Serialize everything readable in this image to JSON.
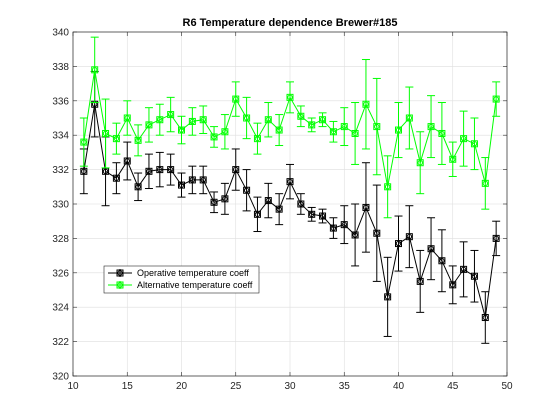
{
  "chart_data": {
    "type": "line",
    "title": "R6 Temperature dependence Brewer#185",
    "xlabel": "",
    "ylabel": "",
    "xlim": [
      10,
      50
    ],
    "ylim": [
      320,
      340
    ],
    "xticks": [
      10,
      15,
      20,
      25,
      30,
      35,
      40,
      45,
      50
    ],
    "yticks": [
      320,
      322,
      324,
      326,
      328,
      330,
      332,
      334,
      336,
      338,
      340
    ],
    "grid": true,
    "legend_placement": "lower-left",
    "series": [
      {
        "name": "Operative temperature coeff",
        "color": "#000000",
        "marker": "circle-square",
        "error_bars": true,
        "x": [
          11,
          12,
          13,
          14,
          15,
          16,
          17,
          18,
          19,
          20,
          21,
          22,
          23,
          24,
          25,
          26,
          27,
          28,
          29,
          30,
          31,
          32,
          33,
          34,
          35,
          36,
          37,
          38,
          39,
          40,
          41,
          42,
          43,
          44,
          45,
          46,
          47,
          48,
          49
        ],
        "y": [
          331.9,
          335.8,
          331.9,
          331.5,
          332.5,
          331.0,
          331.9,
          332.0,
          332.0,
          331.1,
          331.4,
          331.4,
          330.1,
          330.3,
          332.0,
          330.8,
          329.4,
          330.2,
          329.7,
          331.3,
          330.0,
          329.4,
          329.3,
          328.6,
          328.8,
          328.2,
          329.8,
          328.3,
          324.6,
          327.7,
          328.1,
          325.5,
          327.4,
          326.7,
          325.3,
          326.2,
          325.8,
          323.4,
          328.0
        ],
        "err": [
          1.3,
          1.9,
          2.0,
          0.9,
          1.1,
          0.8,
          1.0,
          1.0,
          0.9,
          0.7,
          0.8,
          0.8,
          0.6,
          0.9,
          1.2,
          1.2,
          1.0,
          1.0,
          0.9,
          1.0,
          0.6,
          0.4,
          0.4,
          0.6,
          1.1,
          1.8,
          2.6,
          2.8,
          2.3,
          1.6,
          1.8,
          1.8,
          1.8,
          1.8,
          1.1,
          1.6,
          1.5,
          1.5,
          1.0
        ]
      },
      {
        "name": "Alternative temperature coeff",
        "color": "#00ff00",
        "marker": "circle-square",
        "error_bars": true,
        "x": [
          11,
          12,
          13,
          14,
          15,
          16,
          17,
          18,
          19,
          20,
          21,
          22,
          23,
          24,
          25,
          26,
          27,
          28,
          29,
          30,
          31,
          32,
          33,
          34,
          35,
          36,
          37,
          38,
          39,
          40,
          41,
          42,
          43,
          44,
          45,
          46,
          47,
          48,
          49
        ],
        "y": [
          333.6,
          337.8,
          334.1,
          333.8,
          335.0,
          333.7,
          334.6,
          334.9,
          335.2,
          334.3,
          334.8,
          334.9,
          333.9,
          334.2,
          336.1,
          335.0,
          333.8,
          334.9,
          334.3,
          336.2,
          335.1,
          334.6,
          334.9,
          334.2,
          334.5,
          334.1,
          335.8,
          334.5,
          331.0,
          334.3,
          335.0,
          332.4,
          334.5,
          334.1,
          332.6,
          333.8,
          333.5,
          331.2,
          336.1
        ],
        "err": [
          1.4,
          1.9,
          2.0,
          0.9,
          1.0,
          0.9,
          1.0,
          0.9,
          1.0,
          0.8,
          0.8,
          0.8,
          0.6,
          1.0,
          1.0,
          1.2,
          0.9,
          1.0,
          0.9,
          0.9,
          0.6,
          0.4,
          0.4,
          0.6,
          1.1,
          1.8,
          2.6,
          2.8,
          1.8,
          1.6,
          1.8,
          1.8,
          1.8,
          1.8,
          1.0,
          1.6,
          1.5,
          1.5,
          1.0
        ]
      }
    ]
  }
}
